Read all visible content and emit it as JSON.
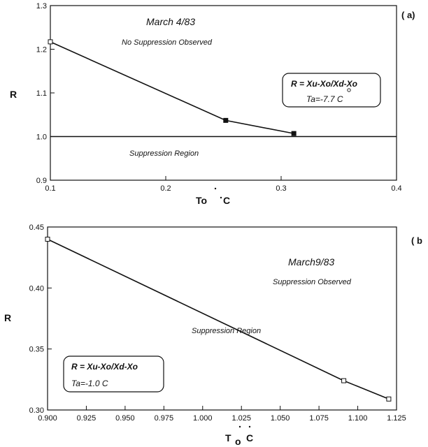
{
  "chart_data": [
    {
      "type": "line",
      "panel_label": "( a)",
      "ylabel": "R",
      "xlabel_parts": [
        "To",
        "C"
      ],
      "xlim": [
        0.1,
        0.4
      ],
      "ylim": [
        0.9,
        1.3
      ],
      "xticks": [
        0.1,
        0.2,
        0.3,
        0.4
      ],
      "xtick_labels": [
        "0.1",
        "0.2",
        "0.3",
        "0.4"
      ],
      "yticks": [
        0.9,
        1.0,
        1.1,
        1.2,
        1.3
      ],
      "ytick_labels": [
        "0.9",
        "1.0",
        "1.1",
        "1.2",
        "1.3"
      ],
      "grid": false,
      "series": [
        {
          "x": [
            0.1,
            0.252,
            0.311
          ],
          "y": [
            1.217,
            1.037,
            1.007
          ]
        }
      ],
      "reference_line": {
        "y": 1.0
      },
      "annotations": {
        "date": "March 4/83",
        "status": "No Suppression Observed",
        "region": "Suppression Region",
        "formula": "R = Xu-Xo/Xd-Xo",
        "ta": "Ta=-7.7 C"
      }
    },
    {
      "type": "line",
      "panel_label": "( b",
      "ylabel": "R",
      "xlabel_parts": [
        "T",
        "o",
        "C"
      ],
      "xlim": [
        0.9,
        1.125
      ],
      "ylim": [
        0.3,
        0.45
      ],
      "xticks": [
        0.9,
        0.925,
        0.95,
        0.975,
        1.0,
        1.025,
        1.05,
        1.075,
        1.1,
        1.125
      ],
      "xtick_labels": [
        "0.900",
        "0.925",
        "0.950",
        "0.975",
        "1.000",
        "1.025",
        "1.050",
        "1.075",
        "1.100",
        "1.125"
      ],
      "yticks": [
        0.3,
        0.35,
        0.4,
        0.45
      ],
      "ytick_labels": [
        "0.30",
        "0.35",
        "0.40",
        "0.45"
      ],
      "grid": false,
      "series": [
        {
          "x": [
            0.9,
            1.091,
            1.12
          ],
          "y": [
            0.44,
            0.324,
            0.309
          ]
        }
      ],
      "annotations": {
        "date": "March9/83",
        "status": "Suppression Observed",
        "region": "Suppression Region",
        "formula": "R = Xu-Xo/Xd-Xo",
        "ta": "Ta=-1.0 C"
      }
    }
  ]
}
